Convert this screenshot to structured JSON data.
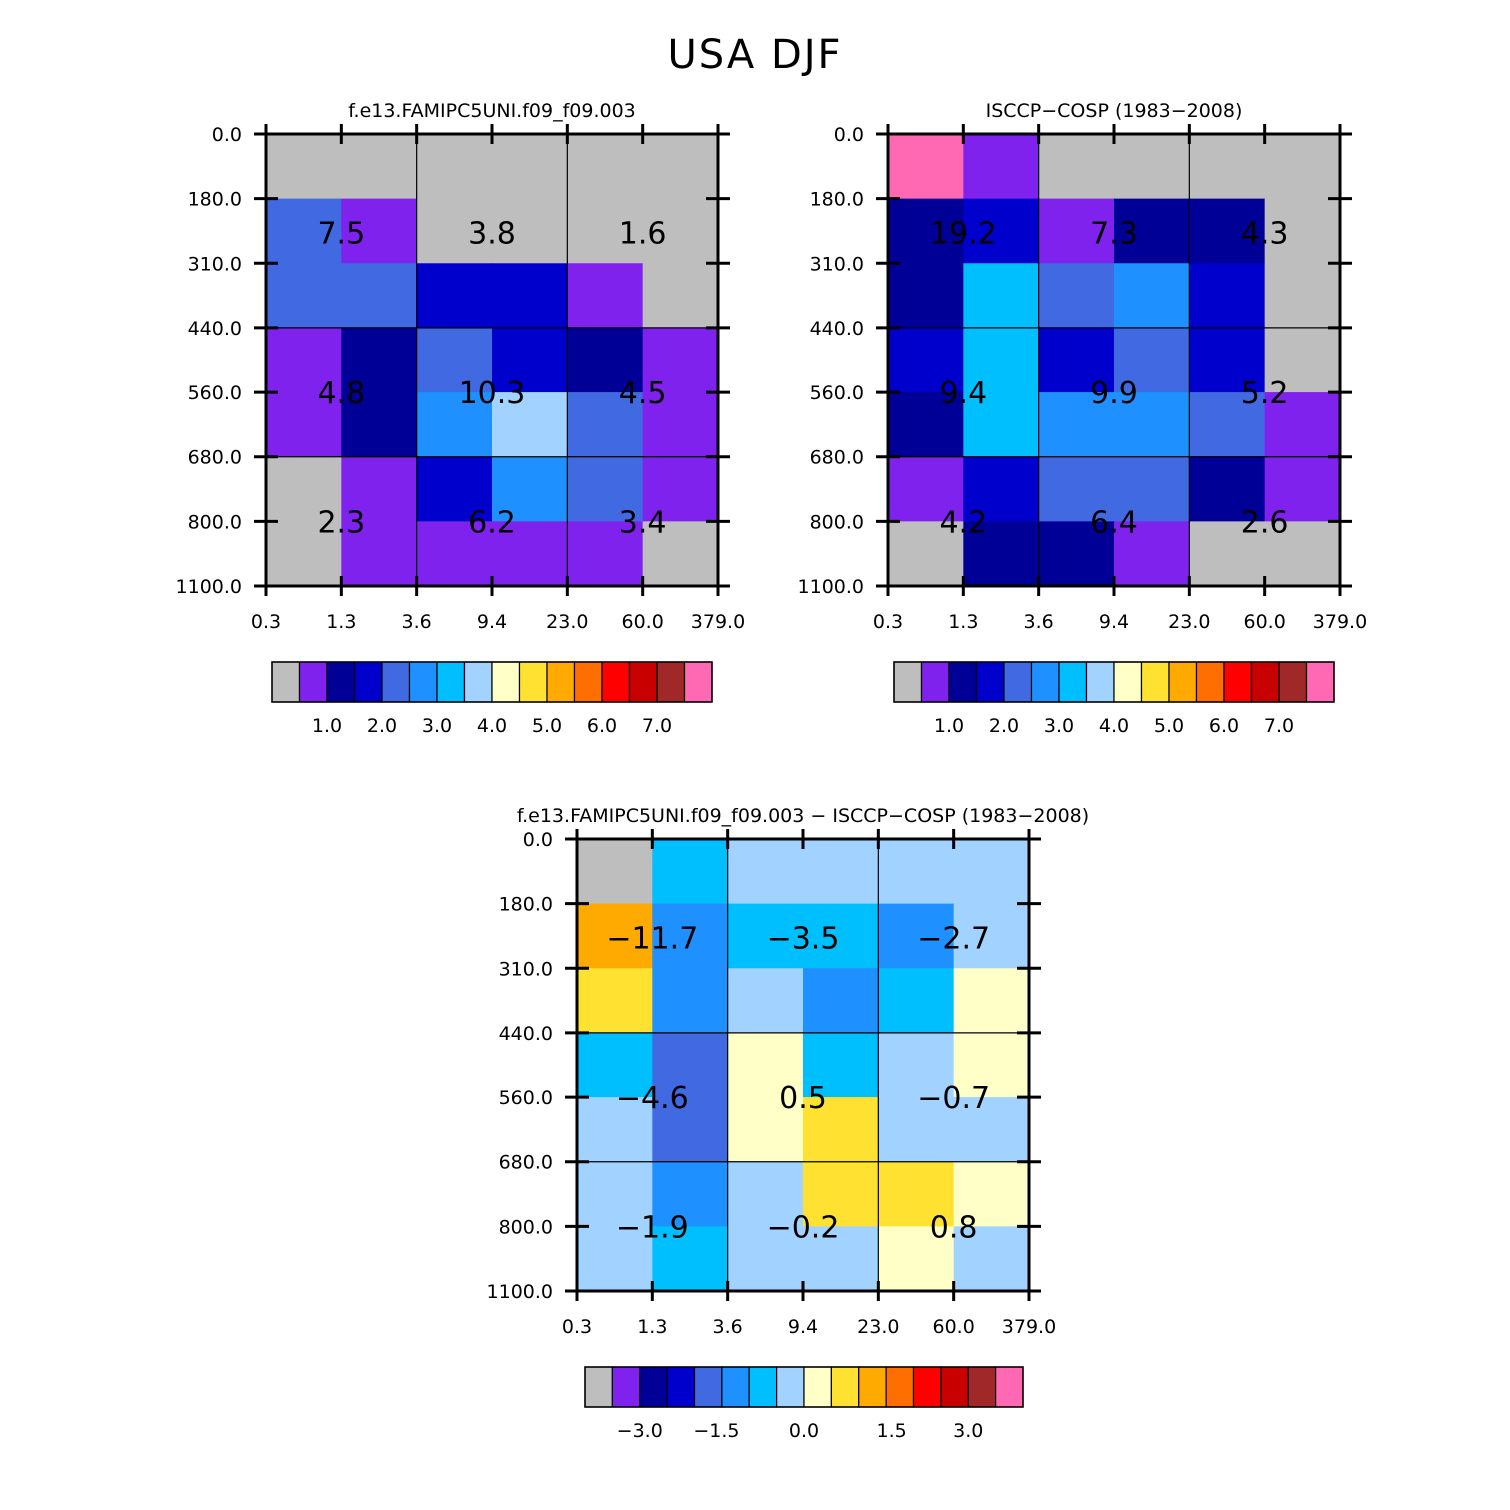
{
  "figure_title": "USA DJF",
  "colors": {
    "missing": "#bebebe",
    "palette": [
      "#bebebe",
      "#8022ee",
      "#000096",
      "#0000cd",
      "#4169e1",
      "#1e90ff",
      "#00bfff",
      "#a2d2ff",
      "#ffffc8",
      "#ffe132",
      "#ffaa00",
      "#ff6e00",
      "#ff0000",
      "#c80000",
      "#a02828",
      "#ff69b4"
    ]
  },
  "chart_data": [
    {
      "type": "heatmap",
      "title": "f.e13.FAMIPC5UNI.f09_f09.003",
      "x_tick_labels": [
        "0.3",
        "1.3",
        "3.6",
        "9.4",
        "23.0",
        "60.0",
        "379.0"
      ],
      "y_tick_labels": [
        "0.0",
        "180.0",
        "310.0",
        "440.0",
        "560.0",
        "680.0",
        "800.0",
        "1100.0"
      ],
      "cell_color_index": [
        [
          0,
          0,
          0,
          0,
          0,
          0
        ],
        [
          4,
          1,
          0,
          0,
          0,
          0
        ],
        [
          4,
          4,
          3,
          3,
          1,
          0
        ],
        [
          1,
          2,
          4,
          3,
          2,
          1
        ],
        [
          1,
          2,
          5,
          7,
          4,
          1
        ],
        [
          0,
          1,
          3,
          5,
          4,
          1
        ],
        [
          0,
          1,
          1,
          1,
          1,
          0
        ]
      ],
      "box_labels": [
        [
          "7.5",
          "3.8",
          "1.6"
        ],
        [
          "4.8",
          "10.3",
          "4.5"
        ],
        [
          "2.3",
          "6.2",
          "3.4"
        ]
      ],
      "colorbar_labels": [
        "1.0",
        "2.0",
        "3.0",
        "4.0",
        "5.0",
        "6.0",
        "7.0"
      ]
    },
    {
      "type": "heatmap",
      "title": "ISCCP-COSP (1983-2008)",
      "x_tick_labels": [
        "0.3",
        "1.3",
        "3.6",
        "9.4",
        "23.0",
        "60.0",
        "379.0"
      ],
      "y_tick_labels": [
        "0.0",
        "180.0",
        "310.0",
        "440.0",
        "560.0",
        "680.0",
        "800.0",
        "1100.0"
      ],
      "cell_color_index": [
        [
          15,
          1,
          0,
          0,
          0,
          0
        ],
        [
          2,
          3,
          1,
          2,
          2,
          0
        ],
        [
          2,
          6,
          4,
          5,
          3,
          0
        ],
        [
          3,
          6,
          3,
          4,
          3,
          0
        ],
        [
          2,
          6,
          5,
          5,
          4,
          1
        ],
        [
          1,
          3,
          4,
          4,
          2,
          1
        ],
        [
          0,
          2,
          2,
          1,
          0,
          0
        ]
      ],
      "box_labels": [
        [
          "19.2",
          "7.3",
          "4.3"
        ],
        [
          "9.4",
          "9.9",
          "5.2"
        ],
        [
          "4.2",
          "6.4",
          "2.6"
        ]
      ],
      "colorbar_labels": [
        "1.0",
        "2.0",
        "3.0",
        "4.0",
        "5.0",
        "6.0",
        "7.0"
      ]
    },
    {
      "type": "heatmap",
      "title": "f.e13.FAMIPC5UNI.f09_f09.003 - ISCCP-COSP (1983-2008)",
      "x_tick_labels": [
        "0.3",
        "1.3",
        "3.6",
        "9.4",
        "23.0",
        "60.0",
        "379.0"
      ],
      "y_tick_labels": [
        "0.0",
        "180.0",
        "310.0",
        "440.0",
        "560.0",
        "680.0",
        "800.0",
        "1100.0"
      ],
      "cell_color_index": [
        [
          0,
          6,
          7,
          7,
          7,
          7
        ],
        [
          10,
          5,
          6,
          6,
          5,
          7
        ],
        [
          9,
          5,
          7,
          5,
          6,
          8
        ],
        [
          6,
          4,
          8,
          6,
          7,
          8
        ],
        [
          7,
          4,
          8,
          9,
          7,
          7
        ],
        [
          7,
          5,
          7,
          9,
          9,
          8
        ],
        [
          7,
          6,
          7,
          7,
          8,
          7
        ]
      ],
      "box_labels": [
        [
          "-11.7",
          "-3.5",
          "-2.7"
        ],
        [
          "-4.6",
          "0.5",
          "-0.7"
        ],
        [
          "-1.9",
          "-0.2",
          "0.8"
        ]
      ],
      "colorbar_labels": [
        "-3.0",
        "-1.5",
        "0.0",
        "1.5",
        "3.0"
      ]
    }
  ]
}
